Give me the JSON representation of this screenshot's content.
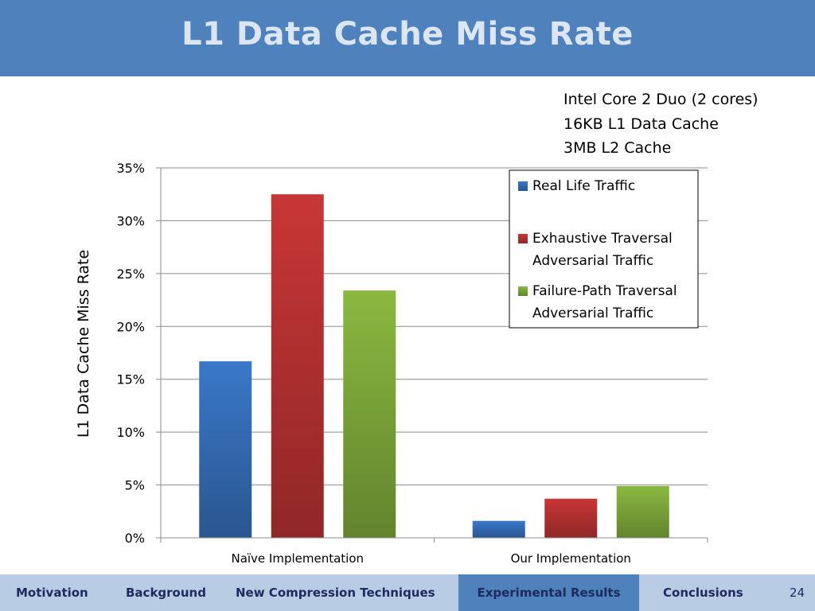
{
  "slide": {
    "title": "L1 Data Cache Miss Rate",
    "spec_lines": [
      "Intel Core 2 Duo (2 cores)",
      "16KB L1 Data Cache",
      "3MB L2 Cache"
    ],
    "page_number": "24"
  },
  "nav": {
    "items": [
      "Motivation",
      "Background",
      "New Compression Techniques",
      "Experimental Results",
      "Conclusions"
    ],
    "active": "Experimental Results"
  },
  "colors": {
    "header": "#4f81bd",
    "nav_bar": "#b8cce4",
    "nav_active": "#4f81bd",
    "series": [
      "#3a78c8",
      "#c83636",
      "#8ab840"
    ]
  },
  "chart_data": {
    "type": "bar",
    "categories": [
      "Naïve Implementation",
      "Our Implementation"
    ],
    "series": [
      {
        "name": "Real Life Traffic",
        "values": [
          16.7,
          1.6
        ]
      },
      {
        "name": "Exhaustive Traversal Adversarial Traffic",
        "values": [
          32.5,
          3.7
        ]
      },
      {
        "name": "Failure-Path Traversal Adversarial Traffic",
        "values": [
          23.4,
          4.9
        ]
      }
    ],
    "legend_lines": [
      [
        "Real Life Traffic"
      ],
      [
        "Exhaustive Traversal",
        "Adversarial Traffic"
      ],
      [
        "Failure-Path Traversal",
        "Adversarial Traffic"
      ]
    ],
    "ylabel": "L1 Data Cache Miss Rate",
    "xlabel": "",
    "ylim": [
      0,
      35
    ],
    "yticks": [
      "0%",
      "5%",
      "10%",
      "15%",
      "20%",
      "25%",
      "30%",
      "35%"
    ],
    "grid": true,
    "legend_position": "top-right"
  }
}
